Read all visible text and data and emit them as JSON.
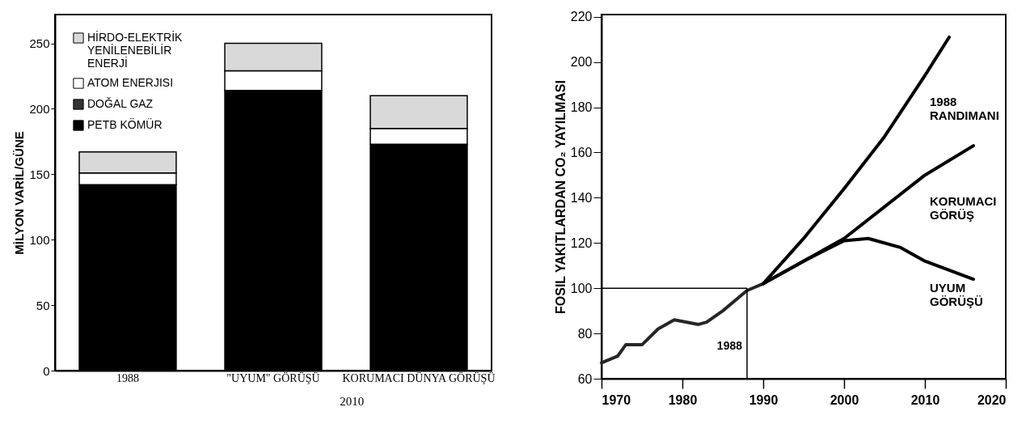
{
  "chart_data": [
    {
      "type": "bar",
      "stacked": true,
      "ylabel": "MİLYON VARİL/GÜNE",
      "categories": [
        "1988",
        "\"UYUM\" GÖRÜŞÜ",
        "KORUMACI DÜNYA GÖRÜŞÜ"
      ],
      "series": [
        {
          "name": "PETB KÖMÜR",
          "color": "#000000",
          "values": [
            142,
            214,
            173
          ]
        },
        {
          "name": "DOĞAL GAZ",
          "color": "#333333",
          "values": [
            null,
            null,
            null
          ]
        },
        {
          "name": "ATOM ENERJISI",
          "color": "#ffffff",
          "values": [
            9,
            15,
            12
          ]
        },
        {
          "name": "HİRDO-ELEKTRİK YENİLENEBİLİR ENERJİ",
          "color": "#d9d9d9",
          "values": [
            16,
            21,
            25
          ]
        }
      ],
      "ylim": [
        0,
        272
      ],
      "yticks": [
        0,
        50,
        100,
        150,
        200,
        250
      ],
      "grid": false,
      "legend": "top left",
      "annotations": [
        "2010"
      ]
    },
    {
      "type": "line",
      "ylabel": "FOSIL YAKITLARDAN CO₂ YAYILMASI",
      "xlim": [
        1970,
        2020
      ],
      "xticks": [
        1970,
        1980,
        1990,
        2000,
        2010,
        2020
      ],
      "ylim": [
        60,
        221
      ],
      "yticks": [
        60,
        80,
        100,
        120,
        140,
        160,
        180,
        200,
        220
      ],
      "grid": false,
      "legend": false,
      "series": [
        {
          "color": "#262626",
          "x": [
            1970,
            1972,
            1973,
            1975,
            1977,
            1979,
            1982,
            1983,
            1985,
            1988,
            1990
          ],
          "values": [
            67,
            70,
            75,
            75,
            82,
            86,
            84,
            85,
            90,
            99,
            102
          ]
        },
        {
          "name": "1988 RANDIMANI",
          "color": "#000000",
          "x": [
            1990,
            1995,
            2000,
            2005,
            2010,
            2013
          ],
          "values": [
            102,
            122,
            144,
            167,
            194,
            211
          ]
        },
        {
          "name": "KORUMACI GÖRÜŞ",
          "color": "#000000",
          "x": [
            1990,
            1995,
            2000,
            2005,
            2010,
            2016
          ],
          "values": [
            102,
            112,
            122,
            136,
            150,
            163
          ]
        },
        {
          "name": "UYUM GÖRÜŞÜ",
          "color": "#000000",
          "x": [
            1990,
            1995,
            2000,
            2003,
            2007,
            2010,
            2016
          ],
          "values": [
            102,
            112,
            121,
            122,
            118,
            112,
            104
          ]
        }
      ],
      "ref_lines": [
        {
          "axis": "x",
          "value": 1988,
          "label": "1988"
        },
        {
          "axis": "y",
          "value": 100
        }
      ]
    }
  ]
}
